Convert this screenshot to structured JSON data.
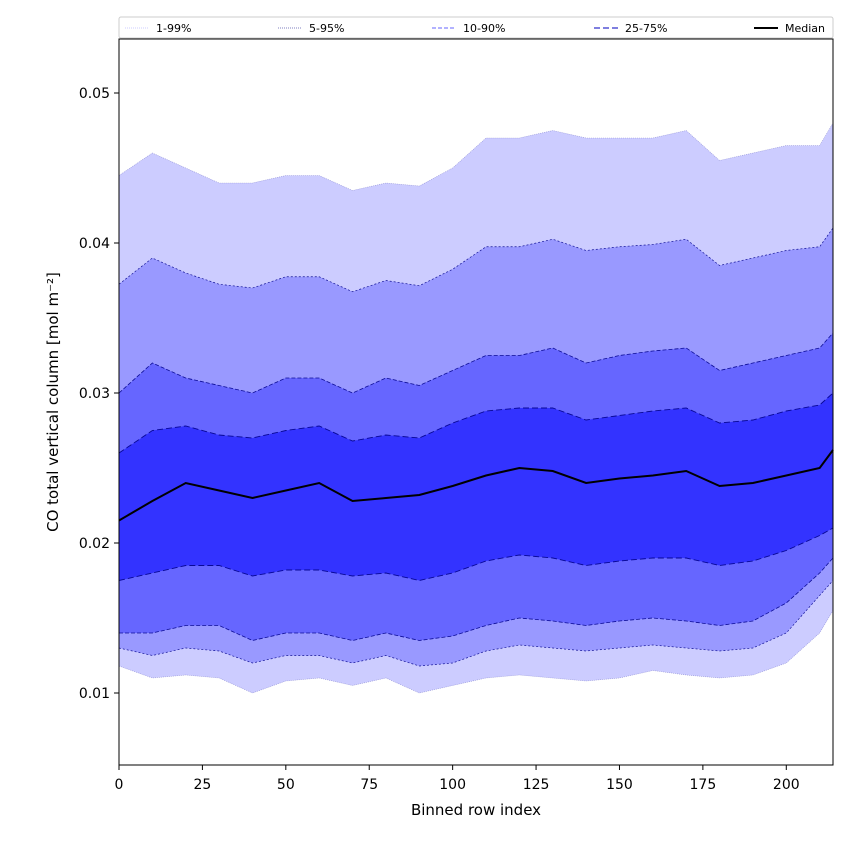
{
  "chart_data": {
    "type": "area",
    "xlabel": "Binned row index",
    "ylabel": "CO total vertical column [mol m⁻²]",
    "xlim": [
      0,
      214
    ],
    "ylim": [
      0.0052,
      0.0536
    ],
    "x_ticks": [
      0,
      25,
      50,
      75,
      100,
      125,
      150,
      175,
      200
    ],
    "y_ticks": [
      0.01,
      0.02,
      0.03,
      0.04,
      0.05
    ],
    "y_tick_labels": [
      "0.01",
      "0.02",
      "0.03",
      "0.04",
      "0.05"
    ],
    "grid": false,
    "legend_position": "top (above plot, single row)",
    "legend": [
      "1-99%",
      "5-95%",
      "10-90%",
      "25-75%",
      "Median"
    ],
    "x": [
      0,
      10,
      20,
      30,
      40,
      50,
      60,
      70,
      80,
      90,
      100,
      110,
      120,
      130,
      140,
      150,
      160,
      170,
      180,
      190,
      200,
      210,
      214
    ],
    "median": [
      0.0215,
      0.0228,
      0.024,
      0.0235,
      0.023,
      0.0235,
      0.024,
      0.0228,
      0.023,
      0.0232,
      0.0238,
      0.0245,
      0.025,
      0.0248,
      0.024,
      0.0243,
      0.0245,
      0.0248,
      0.0238,
      0.024,
      0.0245,
      0.025,
      0.0262
    ],
    "bands": [
      {
        "name": "1-99%",
        "low": [
          0.0118,
          0.011,
          0.0112,
          0.011,
          0.01,
          0.0108,
          0.011,
          0.0105,
          0.011,
          0.01,
          0.0105,
          0.011,
          0.0112,
          0.011,
          0.0108,
          0.011,
          0.0115,
          0.0112,
          0.011,
          0.0112,
          0.012,
          0.014,
          0.0155
        ],
        "high": [
          0.0445,
          0.046,
          0.045,
          0.044,
          0.044,
          0.0445,
          0.0445,
          0.0435,
          0.044,
          0.0438,
          0.045,
          0.047,
          0.047,
          0.0475,
          0.047,
          0.047,
          0.047,
          0.0475,
          0.0455,
          0.046,
          0.0465,
          0.0465,
          0.048
        ]
      },
      {
        "name": "5-95%",
        "low": [
          0.013,
          0.0125,
          0.013,
          0.0128,
          0.012,
          0.0125,
          0.0125,
          0.012,
          0.0125,
          0.0118,
          0.012,
          0.0128,
          0.0132,
          0.013,
          0.0128,
          0.013,
          0.0132,
          0.013,
          0.0128,
          0.013,
          0.014,
          0.0165,
          0.0175
        ]
      },
      {
        "name": "10-90%",
        "low": [
          0.014,
          0.014,
          0.0145,
          0.0145,
          0.0135,
          0.014,
          0.014,
          0.0135,
          0.014,
          0.0135,
          0.0138,
          0.0145,
          0.015,
          0.0148,
          0.0145,
          0.0148,
          0.015,
          0.0148,
          0.0145,
          0.0148,
          0.016,
          0.018,
          0.019
        ],
        "high": [
          0.03,
          0.032,
          0.031,
          0.0305,
          0.03,
          0.031,
          0.031,
          0.03,
          0.031,
          0.0305,
          0.0315,
          0.0325,
          0.0325,
          0.033,
          0.032,
          0.0325,
          0.0328,
          0.033,
          0.0315,
          0.032,
          0.0325,
          0.033,
          0.034
        ]
      },
      {
        "name": "25-75%",
        "low": [
          0.0175,
          0.018,
          0.0185,
          0.0185,
          0.0178,
          0.0182,
          0.0182,
          0.0178,
          0.018,
          0.0175,
          0.018,
          0.0188,
          0.0192,
          0.019,
          0.0185,
          0.0188,
          0.019,
          0.019,
          0.0185,
          0.0188,
          0.0195,
          0.0205,
          0.021
        ],
        "high": [
          0.026,
          0.0275,
          0.0278,
          0.0272,
          0.027,
          0.0275,
          0.0278,
          0.0268,
          0.0272,
          0.027,
          0.028,
          0.0288,
          0.029,
          0.029,
          0.0282,
          0.0285,
          0.0288,
          0.029,
          0.028,
          0.0282,
          0.0288,
          0.0292,
          0.03
        ]
      }
    ],
    "colors": {
      "band_1_99": "#ccccff",
      "band_5_95": "#9999ff",
      "band_10_90": "#6666ff",
      "band_25_75": "#3333ff",
      "band_edge": "#00008b",
      "median": "#000000"
    }
  }
}
